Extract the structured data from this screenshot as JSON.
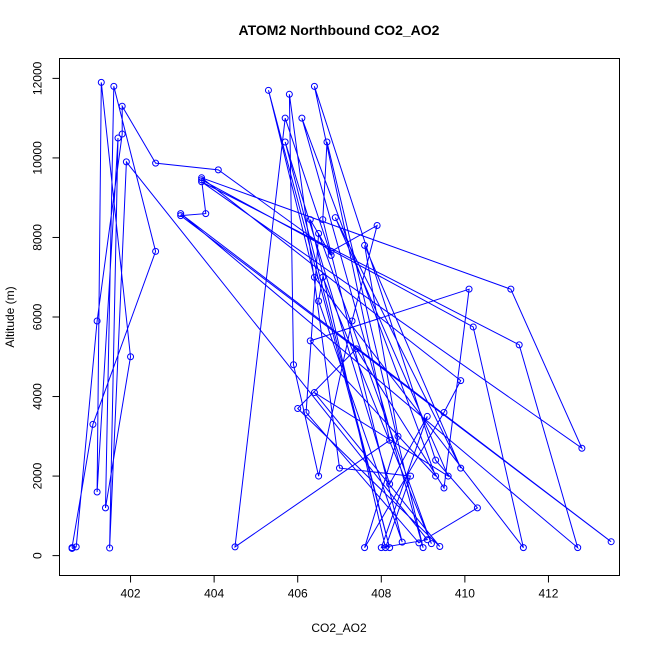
{
  "chart_data": {
    "type": "line",
    "title": "ATOM2 Northbound CO2_AO2",
    "xlabel": "CO2_AO2",
    "ylabel": "Altitude (m)",
    "xlim": [
      400.3,
      413.7
    ],
    "ylim": [
      -500,
      12500
    ],
    "xticks": [
      402,
      404,
      406,
      408,
      410,
      412
    ],
    "yticks": [
      0,
      2000,
      4000,
      6000,
      8000,
      10000,
      12000
    ],
    "grid": false,
    "legend": "none",
    "color": "#0000ff",
    "series": [
      {
        "points": [
          [
            400.6,
            180
          ],
          [
            400.7,
            220
          ],
          [
            401.2,
            5900
          ],
          [
            401.8,
            10600
          ],
          [
            401.8,
            11300
          ],
          [
            402.6,
            9870
          ],
          [
            404.1,
            9700
          ],
          [
            406.8,
            7650
          ],
          [
            407.9,
            8300
          ],
          [
            407.3,
            5900
          ],
          [
            406.5,
            2000
          ],
          [
            405.9,
            4800
          ],
          [
            405.8,
            11600
          ],
          [
            407.0,
            2200
          ],
          [
            408.7,
            2000
          ],
          [
            408.1,
            200
          ],
          [
            406.3,
            8450
          ],
          [
            406.8,
            7550
          ],
          [
            405.7,
            11000
          ],
          [
            404.5,
            220
          ],
          [
            408.2,
            2900
          ],
          [
            406.4,
            11800
          ],
          [
            409.3,
            2400
          ],
          [
            410.3,
            1200
          ],
          [
            408.9,
            320
          ],
          [
            406.2,
            3600
          ],
          [
            406.5,
            8100
          ],
          [
            409.2,
            300
          ],
          [
            406.6,
            7000
          ],
          [
            406.5,
            6400
          ],
          [
            408.5,
            340
          ],
          [
            406.6,
            8450
          ],
          [
            406.7,
            10400
          ],
          [
            409.0,
            200
          ],
          [
            406.1,
            11000
          ],
          [
            409.3,
            2000
          ],
          [
            406.3,
            5400
          ],
          [
            410.1,
            6700
          ],
          [
            409.5,
            1700
          ],
          [
            407.4,
            5200
          ],
          [
            406.0,
            3700
          ],
          [
            409.4,
            230
          ],
          [
            406.4,
            4100
          ],
          [
            409.6,
            2000
          ],
          [
            406.9,
            8500
          ],
          [
            409.9,
            2200
          ],
          [
            407.6,
            7800
          ],
          [
            408.4,
            3000
          ],
          [
            407.6,
            200
          ],
          [
            409.5,
            3600
          ],
          [
            409.9,
            4400
          ],
          [
            403.7,
            9500
          ],
          [
            411.1,
            6700
          ],
          [
            412.8,
            2700
          ],
          [
            403.7,
            9400
          ],
          [
            411.3,
            5300
          ],
          [
            412.7,
            200
          ],
          [
            403.2,
            8600
          ],
          [
            413.5,
            350
          ],
          [
            403.2,
            8550
          ],
          [
            403.8,
            8600
          ],
          [
            403.7,
            9450
          ],
          [
            410.2,
            5750
          ],
          [
            411.4,
            200
          ],
          [
            406.4,
            7000
          ],
          [
            405.3,
            11700
          ],
          [
            408.2,
            200
          ],
          [
            405.7,
            10400
          ],
          [
            408.2,
            1800
          ],
          [
            409.1,
            3500
          ],
          [
            408.0,
            200
          ],
          [
            409.1,
            400
          ],
          [
            401.9,
            9900
          ],
          [
            401.5,
            190
          ],
          [
            401.7,
            10500
          ],
          [
            401.2,
            1600
          ],
          [
            401.3,
            11900
          ],
          [
            402.0,
            5000
          ],
          [
            401.4,
            1200
          ],
          [
            401.6,
            11800
          ],
          [
            402.6,
            7650
          ],
          [
            401.1,
            3300
          ],
          [
            400.6,
            200
          ]
        ]
      }
    ]
  }
}
